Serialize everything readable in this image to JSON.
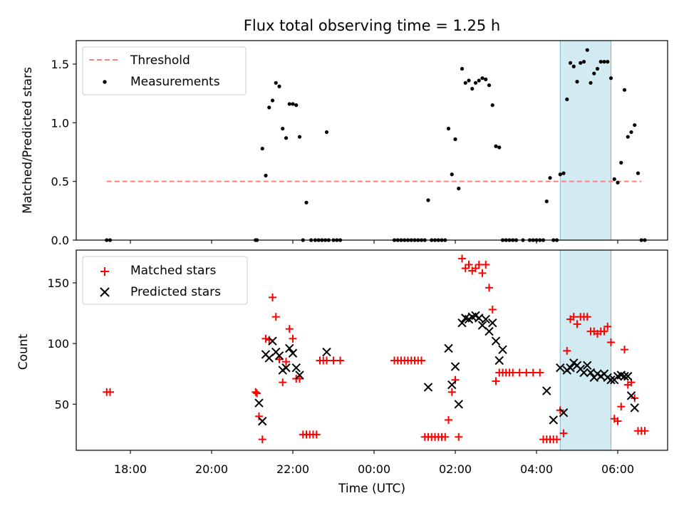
{
  "title": "Flux total observing time = 1.25 h",
  "x_axis": {
    "label": "Time (UTC)",
    "tick_labels": [
      "18:00",
      "20:00",
      "22:00",
      "00:00",
      "02:00",
      "04:00",
      "06:00"
    ]
  },
  "highlight_span": {
    "start": "04:35",
    "end": "05:50",
    "color": "#add8e6"
  },
  "chart_data": [
    {
      "type": "scatter",
      "panel": "top",
      "ylabel": "Matched/Predicted stars",
      "ylim": [
        0,
        1.7
      ],
      "yticks": [
        0.0,
        0.5,
        1.0,
        1.5
      ],
      "ytick_labels": [
        "0.0",
        "0.5",
        "1.0",
        "1.5"
      ],
      "threshold": {
        "name": "Threshold",
        "value": 0.5,
        "from": "17:25",
        "to": "06:35",
        "color": "#ff7f7f"
      },
      "legend": {
        "position": "upper-left",
        "entries": [
          "Threshold",
          "Measurements"
        ]
      },
      "series": [
        {
          "name": "Measurements",
          "color": "#000000",
          "points": [
            [
              "17:25",
              0
            ],
            [
              "17:30",
              0
            ],
            [
              "21:05",
              0
            ],
            [
              "21:07",
              0
            ],
            [
              "21:15",
              0.78
            ],
            [
              "21:20",
              0.55
            ],
            [
              "21:25",
              1.13
            ],
            [
              "21:30",
              1.19
            ],
            [
              "21:35",
              1.34
            ],
            [
              "21:40",
              1.31
            ],
            [
              "21:45",
              0.95
            ],
            [
              "21:50",
              0.87
            ],
            [
              "21:55",
              1.16
            ],
            [
              "22:00",
              1.16
            ],
            [
              "22:05",
              1.15
            ],
            [
              "22:10",
              0.88
            ],
            [
              "22:15",
              0
            ],
            [
              "22:20",
              0.32
            ],
            [
              "22:27",
              0
            ],
            [
              "22:33",
              0
            ],
            [
              "22:38",
              0
            ],
            [
              "22:43",
              0
            ],
            [
              "22:48",
              0
            ],
            [
              "22:53",
              0
            ],
            [
              "22:50",
              0.92
            ],
            [
              "23:00",
              0
            ],
            [
              "23:05",
              0
            ],
            [
              "23:10",
              0
            ],
            [
              "00:30",
              0
            ],
            [
              "00:35",
              0
            ],
            [
              "00:40",
              0
            ],
            [
              "00:45",
              0
            ],
            [
              "00:50",
              0
            ],
            [
              "00:55",
              0
            ],
            [
              "01:00",
              0
            ],
            [
              "01:05",
              0
            ],
            [
              "01:10",
              0
            ],
            [
              "01:15",
              0
            ],
            [
              "01:20",
              0.34
            ],
            [
              "01:25",
              0
            ],
            [
              "01:30",
              0
            ],
            [
              "01:35",
              0
            ],
            [
              "01:40",
              0
            ],
            [
              "01:45",
              0
            ],
            [
              "01:50",
              0.95
            ],
            [
              "01:55",
              0.56
            ],
            [
              "02:00",
              0.86
            ],
            [
              "02:05",
              0.44
            ],
            [
              "02:10",
              1.46
            ],
            [
              "02:15",
              1.34
            ],
            [
              "02:20",
              1.36
            ],
            [
              "02:25",
              1.29
            ],
            [
              "02:30",
              1.34
            ],
            [
              "02:35",
              1.36
            ],
            [
              "02:40",
              1.38
            ],
            [
              "02:45",
              1.37
            ],
            [
              "02:50",
              1.32
            ],
            [
              "02:55",
              1.15
            ],
            [
              "03:00",
              0.8
            ],
            [
              "03:05",
              0.79
            ],
            [
              "03:10",
              0
            ],
            [
              "03:15",
              0
            ],
            [
              "03:20",
              0
            ],
            [
              "03:25",
              0
            ],
            [
              "03:30",
              0
            ],
            [
              "03:40",
              0
            ],
            [
              "03:50",
              0
            ],
            [
              "03:55",
              0
            ],
            [
              "04:00",
              0
            ],
            [
              "04:05",
              0
            ],
            [
              "04:10",
              0
            ],
            [
              "04:15",
              0.33
            ],
            [
              "04:20",
              0.53
            ],
            [
              "04:25",
              0
            ],
            [
              "04:30",
              0
            ],
            [
              "04:35",
              0.56
            ],
            [
              "04:40",
              0.57
            ],
            [
              "04:45",
              1.2
            ],
            [
              "04:50",
              1.51
            ],
            [
              "04:55",
              1.48
            ],
            [
              "05:00",
              1.35
            ],
            [
              "05:05",
              1.51
            ],
            [
              "05:10",
              1.52
            ],
            [
              "05:15",
              1.62
            ],
            [
              "05:20",
              1.34
            ],
            [
              "05:25",
              1.42
            ],
            [
              "05:30",
              1.46
            ],
            [
              "05:35",
              1.52
            ],
            [
              "05:40",
              1.52
            ],
            [
              "05:45",
              1.52
            ],
            [
              "05:50",
              1.38
            ],
            [
              "05:55",
              0.52
            ],
            [
              "06:00",
              0.49
            ],
            [
              "06:05",
              0.66
            ],
            [
              "06:10",
              1.28
            ],
            [
              "06:15",
              0.88
            ],
            [
              "06:20",
              0.92
            ],
            [
              "06:25",
              0.98
            ],
            [
              "06:30",
              0.57
            ],
            [
              "06:35",
              0
            ],
            [
              "06:40",
              0
            ]
          ]
        }
      ]
    },
    {
      "type": "scatter",
      "panel": "bottom",
      "ylabel": "Count",
      "ylim": [
        12,
        177
      ],
      "yticks": [
        50,
        100,
        150
      ],
      "ytick_labels": [
        "50",
        "100",
        "150"
      ],
      "legend": {
        "position": "upper-left",
        "entries": [
          "Matched stars",
          "Predicted stars"
        ]
      },
      "series": [
        {
          "name": "Matched stars",
          "marker": "plus",
          "color": "#ff0000",
          "points": [
            [
              "17:25",
              60
            ],
            [
              "17:30",
              60
            ],
            [
              "21:05",
              60
            ],
            [
              "21:07",
              59
            ],
            [
              "21:10",
              40
            ],
            [
              "21:15",
              21
            ],
            [
              "21:20",
              104
            ],
            [
              "21:25",
              103
            ],
            [
              "21:30",
              138
            ],
            [
              "21:35",
              122
            ],
            [
              "21:40",
              87
            ],
            [
              "21:45",
              68
            ],
            [
              "21:50",
              85
            ],
            [
              "21:55",
              112
            ],
            [
              "22:00",
              104
            ],
            [
              "22:05",
              71
            ],
            [
              "22:10",
              71
            ],
            [
              "22:15",
              25
            ],
            [
              "22:20",
              25
            ],
            [
              "22:25",
              25
            ],
            [
              "22:30",
              25
            ],
            [
              "22:35",
              25
            ],
            [
              "22:40",
              86
            ],
            [
              "22:45",
              86
            ],
            [
              "22:50",
              86
            ],
            [
              "23:00",
              86
            ],
            [
              "23:10",
              86
            ],
            [
              "00:30",
              86
            ],
            [
              "00:35",
              86
            ],
            [
              "00:40",
              86
            ],
            [
              "00:45",
              86
            ],
            [
              "00:50",
              86
            ],
            [
              "00:55",
              86
            ],
            [
              "01:00",
              86
            ],
            [
              "01:05",
              86
            ],
            [
              "01:10",
              86
            ],
            [
              "01:15",
              23
            ],
            [
              "01:20",
              23
            ],
            [
              "01:25",
              23
            ],
            [
              "01:30",
              23
            ],
            [
              "01:35",
              23
            ],
            [
              "01:40",
              23
            ],
            [
              "01:45",
              23
            ],
            [
              "01:50",
              37
            ],
            [
              "01:55",
              60
            ],
            [
              "02:00",
              70
            ],
            [
              "02:05",
              23
            ],
            [
              "02:10",
              170
            ],
            [
              "02:15",
              162
            ],
            [
              "02:20",
              165
            ],
            [
              "02:25",
              160
            ],
            [
              "02:30",
              162
            ],
            [
              "02:35",
              165
            ],
            [
              "02:40",
              158
            ],
            [
              "02:45",
              165
            ],
            [
              "02:50",
              146
            ],
            [
              "02:55",
              128
            ],
            [
              "03:00",
              69
            ],
            [
              "03:05",
              76
            ],
            [
              "03:10",
              76
            ],
            [
              "03:15",
              76
            ],
            [
              "03:20",
              76
            ],
            [
              "03:25",
              76
            ],
            [
              "03:35",
              76
            ],
            [
              "03:45",
              76
            ],
            [
              "03:55",
              76
            ],
            [
              "04:05",
              76
            ],
            [
              "04:10",
              21
            ],
            [
              "04:15",
              21
            ],
            [
              "04:20",
              21
            ],
            [
              "04:25",
              21
            ],
            [
              "04:30",
              21
            ],
            [
              "04:35",
              45
            ],
            [
              "04:40",
              26
            ],
            [
              "04:45",
              94
            ],
            [
              "04:50",
              120
            ],
            [
              "04:55",
              122
            ],
            [
              "05:00",
              116
            ],
            [
              "05:05",
              122
            ],
            [
              "05:10",
              122
            ],
            [
              "05:15",
              122
            ],
            [
              "05:20",
              110
            ],
            [
              "05:25",
              110
            ],
            [
              "05:30",
              108
            ],
            [
              "05:35",
              110
            ],
            [
              "05:40",
              110
            ],
            [
              "05:45",
              114
            ],
            [
              "05:50",
              101
            ],
            [
              "05:55",
              38
            ],
            [
              "06:00",
              36
            ],
            [
              "06:05",
              48
            ],
            [
              "06:10",
              95
            ],
            [
              "06:15",
              66
            ],
            [
              "06:20",
              68
            ],
            [
              "06:25",
              55
            ],
            [
              "06:30",
              28
            ],
            [
              "06:35",
              28
            ],
            [
              "06:40",
              28
            ]
          ]
        },
        {
          "name": "Predicted stars",
          "marker": "x",
          "color": "#000000",
          "points": [
            [
              "21:10",
              51
            ],
            [
              "21:15",
              36
            ],
            [
              "21:20",
              91
            ],
            [
              "21:25",
              88
            ],
            [
              "21:30",
              102
            ],
            [
              "21:35",
              93
            ],
            [
              "21:40",
              90
            ],
            [
              "21:45",
              78
            ],
            [
              "21:50",
              80
            ],
            [
              "21:55",
              96
            ],
            [
              "22:00",
              92
            ],
            [
              "22:05",
              80
            ],
            [
              "22:10",
              74
            ],
            [
              "22:50",
              93
            ],
            [
              "01:20",
              64
            ],
            [
              "01:50",
              96
            ],
            [
              "01:55",
              66
            ],
            [
              "02:00",
              81
            ],
            [
              "02:05",
              50
            ],
            [
              "02:10",
              117
            ],
            [
              "02:15",
              121
            ],
            [
              "02:20",
              120
            ],
            [
              "02:25",
              122
            ],
            [
              "02:30",
              123
            ],
            [
              "02:35",
              121
            ],
            [
              "02:40",
              115
            ],
            [
              "02:45",
              120
            ],
            [
              "02:50",
              110
            ],
            [
              "02:55",
              117
            ],
            [
              "03:00",
              102
            ],
            [
              "03:05",
              86
            ],
            [
              "03:10",
              95
            ],
            [
              "04:15",
              61
            ],
            [
              "04:25",
              37
            ],
            [
              "04:35",
              80
            ],
            [
              "04:40",
              43
            ],
            [
              "04:45",
              78
            ],
            [
              "04:50",
              80
            ],
            [
              "04:55",
              84
            ],
            [
              "05:00",
              82
            ],
            [
              "05:05",
              79
            ],
            [
              "05:10",
              76
            ],
            [
              "05:15",
              82
            ],
            [
              "05:20",
              76
            ],
            [
              "05:25",
              72
            ],
            [
              "05:30",
              75
            ],
            [
              "05:35",
              73
            ],
            [
              "05:40",
              75
            ],
            [
              "05:45",
              72
            ],
            [
              "05:50",
              70
            ],
            [
              "05:55",
              70
            ],
            [
              "06:00",
              73
            ],
            [
              "06:05",
              74
            ],
            [
              "06:10",
              73
            ],
            [
              "06:15",
              73
            ],
            [
              "06:20",
              57
            ],
            [
              "06:25",
              47
            ]
          ]
        }
      ]
    }
  ]
}
